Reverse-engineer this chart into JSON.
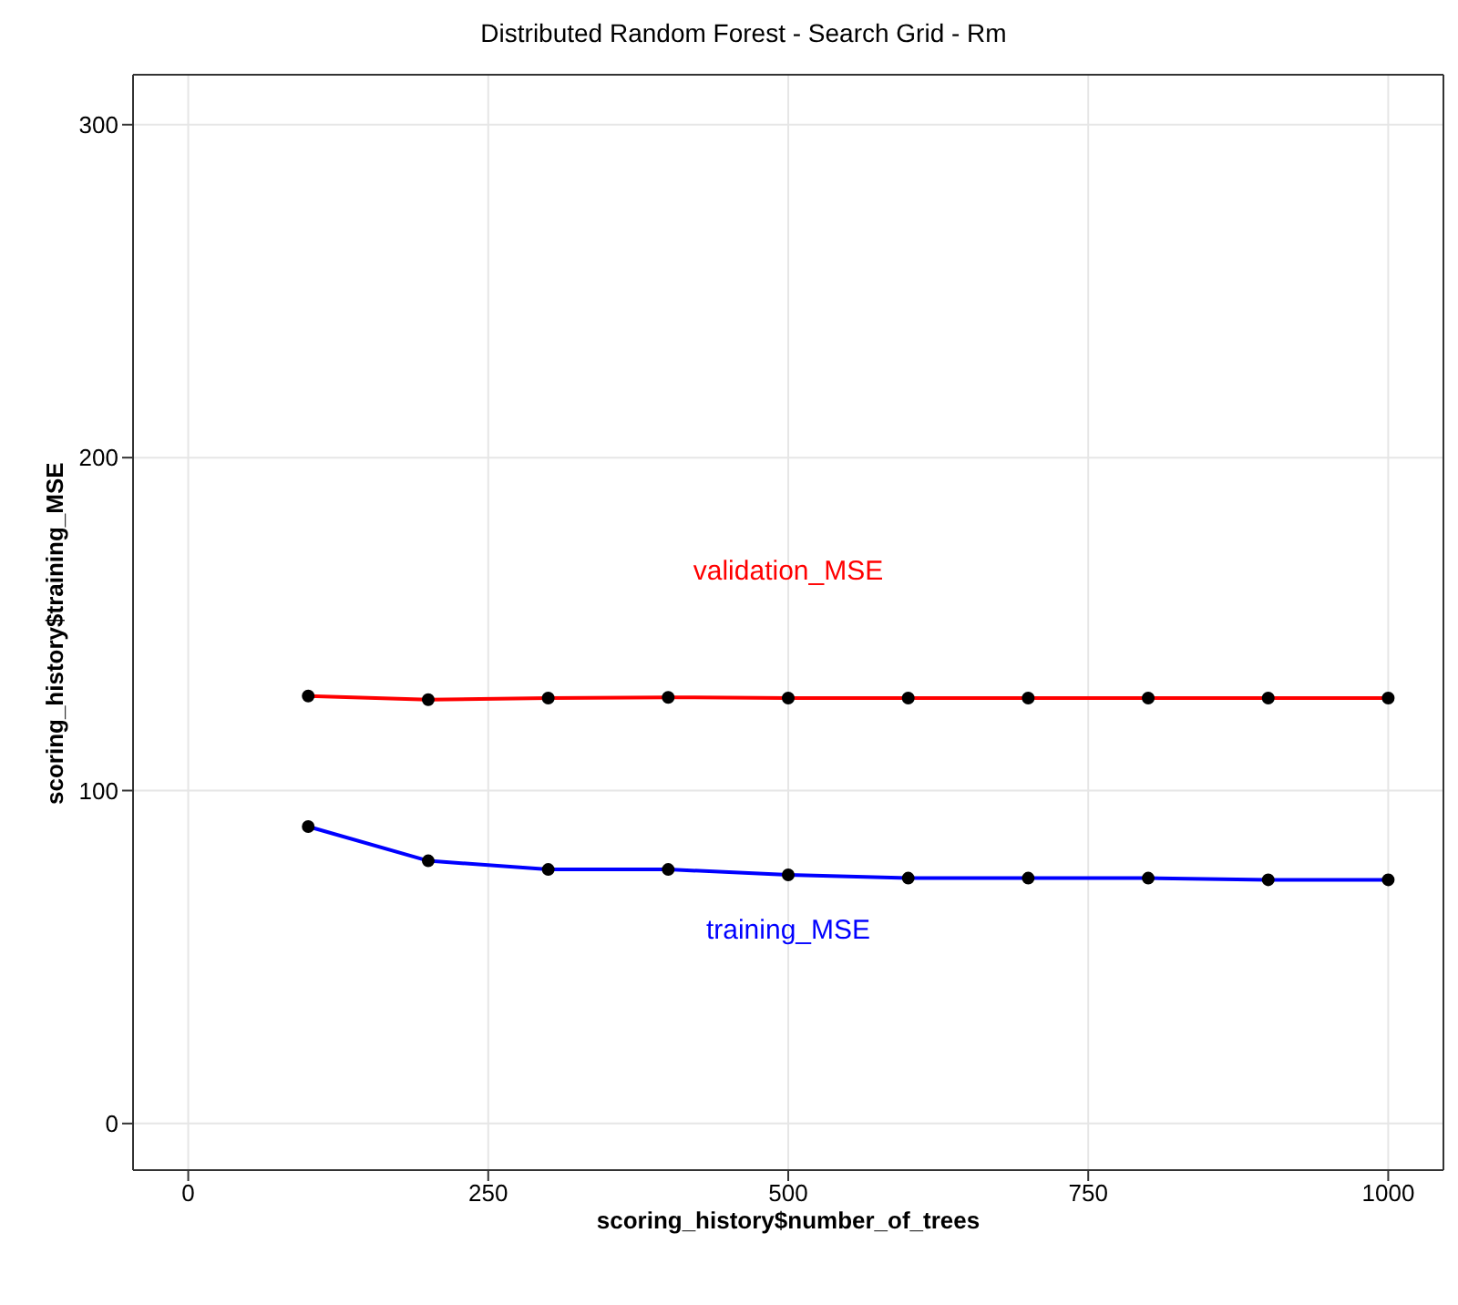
{
  "chart_data": {
    "type": "line",
    "title": "Distributed Random Forest - Search Grid - Rm",
    "xlabel": "scoring_history$number_of_trees",
    "ylabel": "scoring_history$training_MSE",
    "x": [
      100,
      200,
      300,
      400,
      500,
      600,
      700,
      800,
      900,
      1000
    ],
    "series": [
      {
        "name": "validation_MSE",
        "color": "#ff0000",
        "values": [
          128.4,
          127.3,
          127.8,
          128,
          127.8,
          127.8,
          127.8,
          127.8,
          127.8,
          127.8
        ]
      },
      {
        "name": "training_MSE",
        "color": "#0000ff",
        "values": [
          89.2,
          78.9,
          76.3,
          76.3,
          74.7,
          73.7,
          73.7,
          73.7,
          73.2,
          73.2
        ]
      }
    ],
    "xlim": [
      -46,
      1046
    ],
    "xticks": [
      0,
      250,
      500,
      750,
      1000
    ],
    "ylim": [
      -14,
      315
    ],
    "yticks": [
      0,
      100,
      200,
      300
    ],
    "grid": true,
    "marker": "circle",
    "line_style": "solid"
  }
}
